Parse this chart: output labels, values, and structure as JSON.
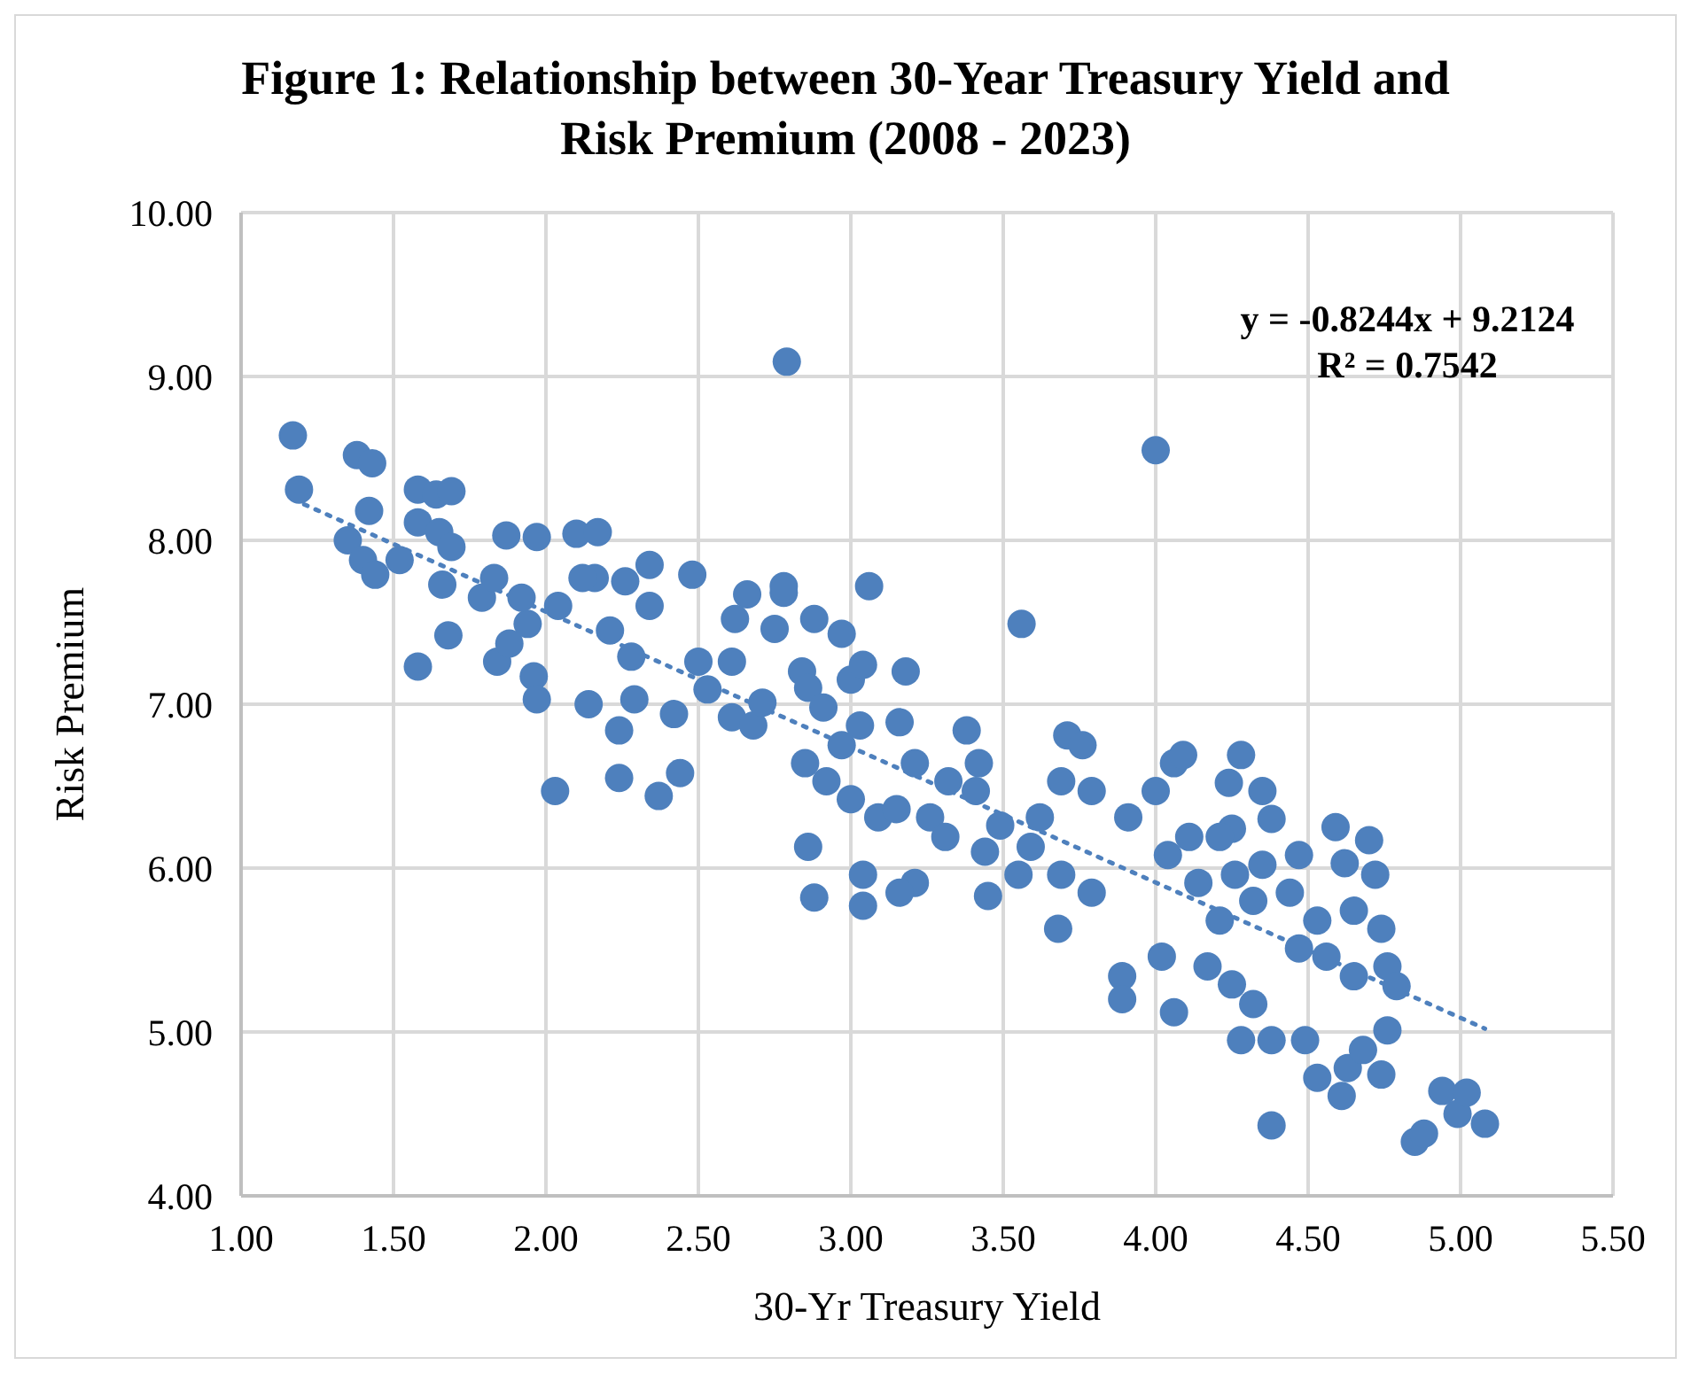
{
  "chart_data": {
    "type": "scatter",
    "title": "Figure 1: Relationship between 30-Year Treasury Yield and Risk Premium (2008 - 2023)",
    "xlabel": "30-Yr Treasury Yield",
    "ylabel": "Risk Premium",
    "annotations": [
      "y = -0.8244x + 9.2124",
      "R² = 0.7542"
    ],
    "xlim": [
      1,
      5.5
    ],
    "ylim": [
      4,
      10
    ],
    "xticks": [
      {
        "value": 1,
        "label": "1.00"
      },
      {
        "value": 1.5,
        "label": "1.50"
      },
      {
        "value": 2,
        "label": "2.00"
      },
      {
        "value": 2.5,
        "label": "2.50"
      },
      {
        "value": 3,
        "label": "3.00"
      },
      {
        "value": 3.5,
        "label": "3.50"
      },
      {
        "value": 4,
        "label": "4.00"
      },
      {
        "value": 4.5,
        "label": "4.50"
      },
      {
        "value": 5,
        "label": "5.00"
      },
      {
        "value": 5.5,
        "label": "5.50"
      }
    ],
    "yticks": [
      {
        "value": 4,
        "label": "4.00"
      },
      {
        "value": 5,
        "label": "5.00"
      },
      {
        "value": 6,
        "label": "6.00"
      },
      {
        "value": 7,
        "label": "7.00"
      },
      {
        "value": 8,
        "label": "8.00"
      },
      {
        "value": 9,
        "label": "9.00"
      },
      {
        "value": 10,
        "label": "10.00"
      }
    ],
    "grid": true,
    "marker": "circle",
    "series": [
      {
        "type": "scatter",
        "color": "#4e80bd",
        "x": [
          1.17,
          1.19,
          1.38,
          1.43,
          1.42,
          1.35,
          1.4,
          1.44,
          1.52,
          1.58,
          1.58,
          1.64,
          1.69,
          1.65,
          1.66,
          1.69,
          1.58,
          1.68,
          1.79,
          1.83,
          1.87,
          1.97,
          1.84,
          1.88,
          1.94,
          1.96,
          2.1,
          2.17,
          2.04,
          1.97,
          2.03,
          2.14,
          2.16,
          2.21,
          2.28,
          2.34,
          2.34,
          2.29,
          2.24,
          2.24,
          2.37,
          2.44,
          2.42,
          2.48,
          2.5,
          2.53,
          2.26,
          2.12,
          1.92,
          2.66,
          2.62,
          2.61,
          2.61,
          2.68,
          2.71,
          2.75,
          2.78,
          2.78,
          2.79,
          2.84,
          2.88,
          2.86,
          2.91,
          2.97,
          3.0,
          3.04,
          3.03,
          2.97,
          2.85,
          2.92,
          2.86,
          2.88,
          3.06,
          3.0,
          3.04,
          3.04,
          3.09,
          3.15,
          3.18,
          3.16,
          3.21,
          3.26,
          3.21,
          3.16,
          3.32,
          3.31,
          3.44,
          3.45,
          3.38,
          3.41,
          3.42,
          3.56,
          3.49,
          3.55,
          3.62,
          3.71,
          3.69,
          3.76,
          3.79,
          3.68,
          3.79,
          3.59,
          3.91,
          3.89,
          3.89,
          3.69,
          4.0,
          4.06,
          4.09,
          4.0,
          4.11,
          4.14,
          4.04,
          4.02,
          4.06,
          4.21,
          4.24,
          4.28,
          4.25,
          4.26,
          4.25,
          4.28,
          4.32,
          4.38,
          4.38,
          4.35,
          4.35,
          4.38,
          4.44,
          4.47,
          4.53,
          4.49,
          4.53,
          4.59,
          4.62,
          4.65,
          4.65,
          4.61,
          4.63,
          4.68,
          4.74,
          4.7,
          4.72,
          4.74,
          4.76,
          4.76,
          4.79,
          4.94,
          4.99,
          5.02,
          5.08,
          4.85,
          4.88,
          4.56,
          4.47,
          4.32,
          4.17,
          4.21
        ],
        "values": [
          8.64,
          8.31,
          8.52,
          8.47,
          8.18,
          8.0,
          7.88,
          7.79,
          7.88,
          8.11,
          8.31,
          8.28,
          8.3,
          8.05,
          7.73,
          7.96,
          7.23,
          7.42,
          7.65,
          7.77,
          8.03,
          8.02,
          7.26,
          7.37,
          7.49,
          7.17,
          8.04,
          8.05,
          7.6,
          7.03,
          6.47,
          7.0,
          7.77,
          7.45,
          7.29,
          7.85,
          7.6,
          7.03,
          6.84,
          6.55,
          6.44,
          6.58,
          6.94,
          7.79,
          7.26,
          7.09,
          7.75,
          7.77,
          7.65,
          7.67,
          7.52,
          7.26,
          6.92,
          6.87,
          7.01,
          7.46,
          7.68,
          7.72,
          9.09,
          7.2,
          7.52,
          7.1,
          6.98,
          7.43,
          7.15,
          7.24,
          6.87,
          6.75,
          6.64,
          6.53,
          6.13,
          5.82,
          7.72,
          6.42,
          5.96,
          5.77,
          6.31,
          6.36,
          7.2,
          6.89,
          6.64,
          6.31,
          5.91,
          5.85,
          6.53,
          6.19,
          6.1,
          5.83,
          6.84,
          6.47,
          6.64,
          7.49,
          6.26,
          5.96,
          6.31,
          6.81,
          6.53,
          6.75,
          6.47,
          5.63,
          5.85,
          6.13,
          6.31,
          5.34,
          5.2,
          5.96,
          8.55,
          6.64,
          6.69,
          6.47,
          6.19,
          5.91,
          6.08,
          5.46,
          5.12,
          5.68,
          6.52,
          6.69,
          6.24,
          5.96,
          5.29,
          4.95,
          5.17,
          4.95,
          4.43,
          6.02,
          6.47,
          6.3,
          5.85,
          6.08,
          5.68,
          4.95,
          4.72,
          6.25,
          6.03,
          5.74,
          5.34,
          4.61,
          4.78,
          4.89,
          4.74,
          6.17,
          5.96,
          5.63,
          5.4,
          5.01,
          5.28,
          4.64,
          4.5,
          4.63,
          4.44,
          4.33,
          4.38,
          5.46,
          5.51,
          5.8,
          5.4,
          6.19
        ]
      },
      {
        "type": "line",
        "color": "#4e80bd",
        "line_style": "dotted",
        "marker": "none",
        "x": [
          1.17,
          5.08
        ],
        "values": [
          8.25,
          5.02
        ]
      }
    ]
  }
}
